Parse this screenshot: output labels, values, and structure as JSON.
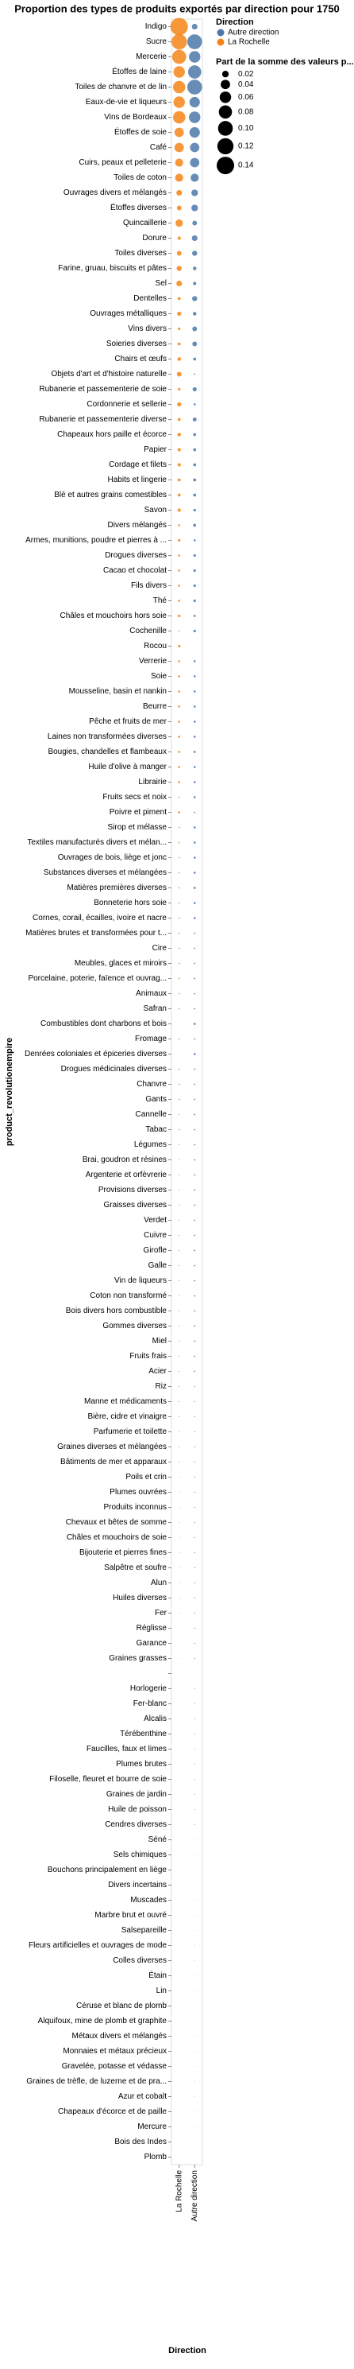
{
  "chart_data": {
    "type": "bubble",
    "title": "Proportion des types de produits exportés par direction pour 1750",
    "x_label": "Direction",
    "y_label": "product_revolutionempire",
    "x": [
      "La Rochelle",
      "Autre direction"
    ],
    "categories": [
      "Indigo",
      "Sucre",
      "Mercerie",
      "Étoffes de laine",
      "Toiles de chanvre et de lin",
      "Eaux-de-vie et liqueurs",
      "Vins de Bordeaux",
      "Étoffes de soie",
      "Café",
      "Cuirs, peaux et pelleterie",
      "Toiles de coton",
      "Ouvrages divers et mélangés",
      "Étoffes diverses",
      "Quincaillerie",
      "Dorure",
      "Toiles diverses",
      "Farine, gruau, biscuits et pâtes",
      "Sel",
      "Dentelles",
      "Ouvrages métalliques",
      "Vins divers",
      "Soieries diverses",
      "Chairs et œufs",
      "Objets d'art et d'histoire naturelle",
      "Rubanerie et passementerie de soie",
      "Cordonnerie et sellerie",
      "Rubanerie et passementerie diverse",
      "Chapeaux hors paille et écorce",
      "Papier",
      "Cordage et filets",
      "Habits et lingerie",
      "Blé et autres grains comestibles",
      "Savon",
      "Divers mélangés",
      "Armes, munitions, poudre et pierres à ...",
      "Drogues diverses",
      "Cacao et chocolat",
      "Fils divers",
      "Thé",
      "Châles et mouchoirs hors soie",
      "Cochenille",
      "Rocou",
      "Verrerie",
      "Soie",
      "Mousseline, basin et nankin",
      "Beurre",
      "Pêche et fruits de mer",
      "Laines non transformées diverses",
      "Bougies, chandelles et flambeaux",
      "Huile d'olive à manger",
      "Librairie",
      "Fruits secs et noix",
      "Poivre et piment",
      "Sirop et mélasse",
      "Textiles manufacturés divers et mélan...",
      "Ouvrages de bois, liège et jonc",
      "Substances diverses et mélangées",
      "Matières premières diverses",
      "Bonneterie hors soie",
      "Cornes, corail, écailles, ivoire et nacre",
      "Matières brutes et transformées pour t...",
      "Cire",
      "Meubles, glaces et miroirs",
      "Porcelaine, poterie, faïence et ouvrag...",
      "Animaux",
      "Safran",
      "Combustibles dont charbons et bois",
      "Fromage",
      "Denrées coloniales et épiceries diverses",
      "Drogues médicinales diverses",
      "Chanvre",
      "Gants",
      "Cannelle",
      "Tabac",
      "Légumes",
      "Brai, goudron et résines",
      "Argenterie et orfèvrerie",
      "Provisions diverses",
      "Graisses diverses",
      "Verdet",
      "Cuivre",
      "Girofle",
      "Galle",
      "Vin de liqueurs",
      "Coton non transformé",
      "Bois divers hors combustible",
      "Gommes diverses",
      "Miel",
      "Fruits frais",
      "Acier",
      "Riz",
      "Manne et médicaments",
      "Bière, cidre et vinaigre",
      "Parfumerie et toilette",
      "Graines diverses et mélangées",
      "Bâtiments de mer et apparaux",
      "Poils et crin",
      "Plumes ouvrées",
      "Produits inconnus",
      "Chevaux et bêtes de somme",
      "Châles et mouchoirs de soie",
      "Bijouterie et pierres fines",
      "Salpêtre et soufre",
      "Alun",
      "Huiles diverses",
      "Fer",
      "Réglisse",
      "Garance",
      "Graines grasses",
      null,
      "Horlogerie",
      "Fer-blanc",
      "Alcalis",
      "Térébenthine",
      "Faucilles, faux et limes",
      "Plumes brutes",
      "Filoselle, fleuret et bourre de soie",
      "Graines de jardin",
      "Huile de poisson",
      "Cendres diverses",
      "Séné",
      "Sels chimiques",
      "Bouchons principalement en liège",
      "Divers incertains",
      "Muscades",
      "Marbre brut et ouvré",
      "Salsepareille",
      "Fleurs artificielles et ouvrages de mode",
      "Colles diverses",
      "Étain",
      "Lin",
      "Céruse et blanc de plomb",
      "Alquifoux, mine de plomb et graphite",
      "Métaux divers et mélangés",
      "Monnaies et métaux précieux",
      "Gravelée, potasse et védasse",
      "Graines de trèfle, de luzerne et de pra...",
      "Azur et cobalt",
      "Chapeaux d'écorce et de paille",
      "Mercure",
      "Bois des Indes",
      "Plomb"
    ],
    "legend_title": "Direction",
    "size_legend_title": "Part de la somme des valeurs p...",
    "size_ticks": [
      0.02,
      0.04,
      0.06,
      0.08,
      {
        "value": 0.1,
        "label": "0.10"
      },
      0.12,
      0.14
    ],
    "series": [
      {
        "name": "Autre direction",
        "color": "#4c78a8",
        "values": [
          0.015,
          0.1,
          0.06,
          0.08,
          0.1,
          0.05,
          0.06,
          0.05,
          0.04,
          0.04,
          0.03,
          0.02,
          0.02,
          0.01,
          0.015,
          0.012,
          0.006,
          0.005,
          0.012,
          0.006,
          0.01,
          0.01,
          0.004,
          0.001,
          0.008,
          0.002,
          0.007,
          0.004,
          0.004,
          0.004,
          0.004,
          0.004,
          0.003,
          0.004,
          0.002,
          0.003,
          0.003,
          0.003,
          0.003,
          0.002,
          0.003,
          null,
          0.002,
          0.002,
          0.002,
          0.002,
          0.002,
          0.002,
          0.002,
          0.002,
          0.002,
          0.002,
          0.001,
          0.002,
          0.002,
          0.002,
          0.002,
          0.002,
          0.002,
          0.002,
          0.001,
          0.001,
          0.001,
          0.001,
          0.001,
          0.001,
          0.002,
          0.001,
          0.002,
          0.001,
          0.001,
          0.001,
          0.001,
          0.001,
          0.001,
          0.001,
          0.001,
          0.001,
          0.001,
          0.001,
          0.001,
          0.001,
          0.001,
          0.001,
          0.001,
          0.001,
          0.001,
          0.001,
          0.001,
          0.001,
          0.0005,
          0.0005,
          0.0005,
          0.0005,
          0.0005,
          0.0005,
          0.0005,
          0.0005,
          0.0005,
          0.0005,
          0.0005,
          0.0005,
          0.0005,
          0.0005,
          0.0005,
          0.0005,
          0.0005,
          0.0005,
          0.0005,
          null,
          0.0003,
          0.0003,
          0.0003,
          0.0003,
          0.0003,
          0.0003,
          0.0003,
          0.0003,
          0.0003,
          0.0003,
          0.0002,
          0.0002,
          0.0002,
          0.0002,
          0.0002,
          0.0002,
          0.0002,
          0.0002,
          0.0002,
          0.0002,
          0.0002,
          0.0002,
          0.0002,
          0.0002,
          0.0002,
          0.0002,
          0.0002,
          0.0002,
          0.0002,
          0.0002,
          0.0001,
          0.0001
        ]
      },
      {
        "name": "La Rochelle",
        "color": "#f58518",
        "values": [
          0.14,
          0.11,
          0.09,
          0.06,
          0.07,
          0.06,
          0.07,
          0.04,
          0.04,
          0.03,
          0.03,
          0.015,
          0.01,
          0.025,
          0.005,
          0.01,
          0.012,
          0.015,
          0.004,
          0.008,
          0.003,
          0.004,
          0.006,
          0.01,
          0.003,
          0.008,
          0.004,
          0.006,
          0.005,
          0.005,
          0.004,
          0.004,
          0.005,
          0.002,
          0.003,
          0.002,
          0.002,
          0.002,
          0.002,
          0.003,
          0.001,
          0.003,
          0.002,
          0.002,
          0.002,
          0.002,
          0.002,
          0.002,
          0.002,
          0.002,
          0.002,
          0.001,
          0.002,
          0.001,
          0.001,
          0.001,
          0.001,
          0.001,
          0.001,
          0.001,
          0.001,
          0.001,
          0.001,
          0.001,
          0.001,
          0.001,
          null,
          0.001,
          null,
          0.001,
          0.001,
          0.001,
          0.0005,
          0.001,
          0.0005,
          0.0005,
          0.0005,
          0.0005,
          0.0005,
          0.0005,
          0.0005,
          0.0005,
          0.0005,
          0.0005,
          0.0005,
          0.0005,
          0.0005,
          0.0005,
          0.0005,
          0.0005,
          0.0005,
          0.0005,
          0.0005,
          0.0005,
          0.0005,
          0.0005,
          0.0003,
          0.0003,
          0.0003,
          0.0003,
          0.0003,
          0.0003,
          0.0003,
          0.0003,
          0.0003,
          0.0003,
          0.0002,
          0.0002,
          0.0002,
          null,
          null,
          null,
          null,
          null,
          null,
          null,
          null,
          null,
          null,
          null,
          null,
          null,
          null,
          null,
          null,
          null,
          null,
          null,
          null,
          null,
          null,
          null,
          null,
          null,
          null,
          null,
          null,
          null,
          null,
          null,
          null,
          null
        ]
      }
    ]
  }
}
